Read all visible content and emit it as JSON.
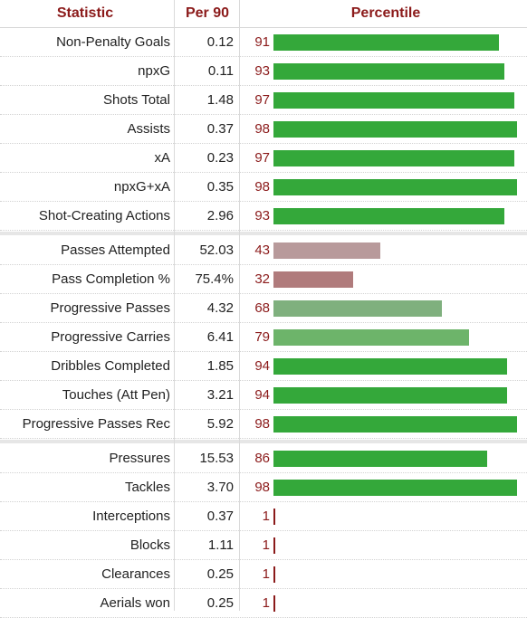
{
  "header": {
    "statistic": "Statistic",
    "per90": "Per 90",
    "percentile": "Percentile"
  },
  "colors": {
    "high": "#34a83a",
    "upper_mid": "#6db46a",
    "mid": "#7fb07e",
    "low_mid": "#b89a9b",
    "low": "#b07b7c",
    "min_tick": "#8b1a1a",
    "label_percentile": "#8b1a1a"
  },
  "chart_data": {
    "type": "bar",
    "title": "",
    "xlabel": "Percentile",
    "xlim": [
      0,
      100
    ],
    "groups": [
      {
        "rows": [
          {
            "stat": "Non-Penalty Goals",
            "per90": "0.12",
            "percentile": 91
          },
          {
            "stat": "npxG",
            "per90": "0.11",
            "percentile": 93
          },
          {
            "stat": "Shots Total",
            "per90": "1.48",
            "percentile": 97
          },
          {
            "stat": "Assists",
            "per90": "0.37",
            "percentile": 98
          },
          {
            "stat": "xA",
            "per90": "0.23",
            "percentile": 97
          },
          {
            "stat": "npxG+xA",
            "per90": "0.35",
            "percentile": 98
          },
          {
            "stat": "Shot-Creating Actions",
            "per90": "2.96",
            "percentile": 93
          }
        ]
      },
      {
        "rows": [
          {
            "stat": "Passes Attempted",
            "per90": "52.03",
            "percentile": 43
          },
          {
            "stat": "Pass Completion %",
            "per90": "75.4%",
            "percentile": 32
          },
          {
            "stat": "Progressive Passes",
            "per90": "4.32",
            "percentile": 68
          },
          {
            "stat": "Progressive Carries",
            "per90": "6.41",
            "percentile": 79
          },
          {
            "stat": "Dribbles Completed",
            "per90": "1.85",
            "percentile": 94
          },
          {
            "stat": "Touches (Att Pen)",
            "per90": "3.21",
            "percentile": 94
          },
          {
            "stat": "Progressive Passes Rec",
            "per90": "5.92",
            "percentile": 98
          }
        ]
      },
      {
        "rows": [
          {
            "stat": "Pressures",
            "per90": "15.53",
            "percentile": 86
          },
          {
            "stat": "Tackles",
            "per90": "3.70",
            "percentile": 98
          },
          {
            "stat": "Interceptions",
            "per90": "0.37",
            "percentile": 1
          },
          {
            "stat": "Blocks",
            "per90": "1.11",
            "percentile": 1
          },
          {
            "stat": "Clearances",
            "per90": "0.25",
            "percentile": 1
          },
          {
            "stat": "Aerials won",
            "per90": "0.25",
            "percentile": 1
          }
        ]
      }
    ]
  }
}
